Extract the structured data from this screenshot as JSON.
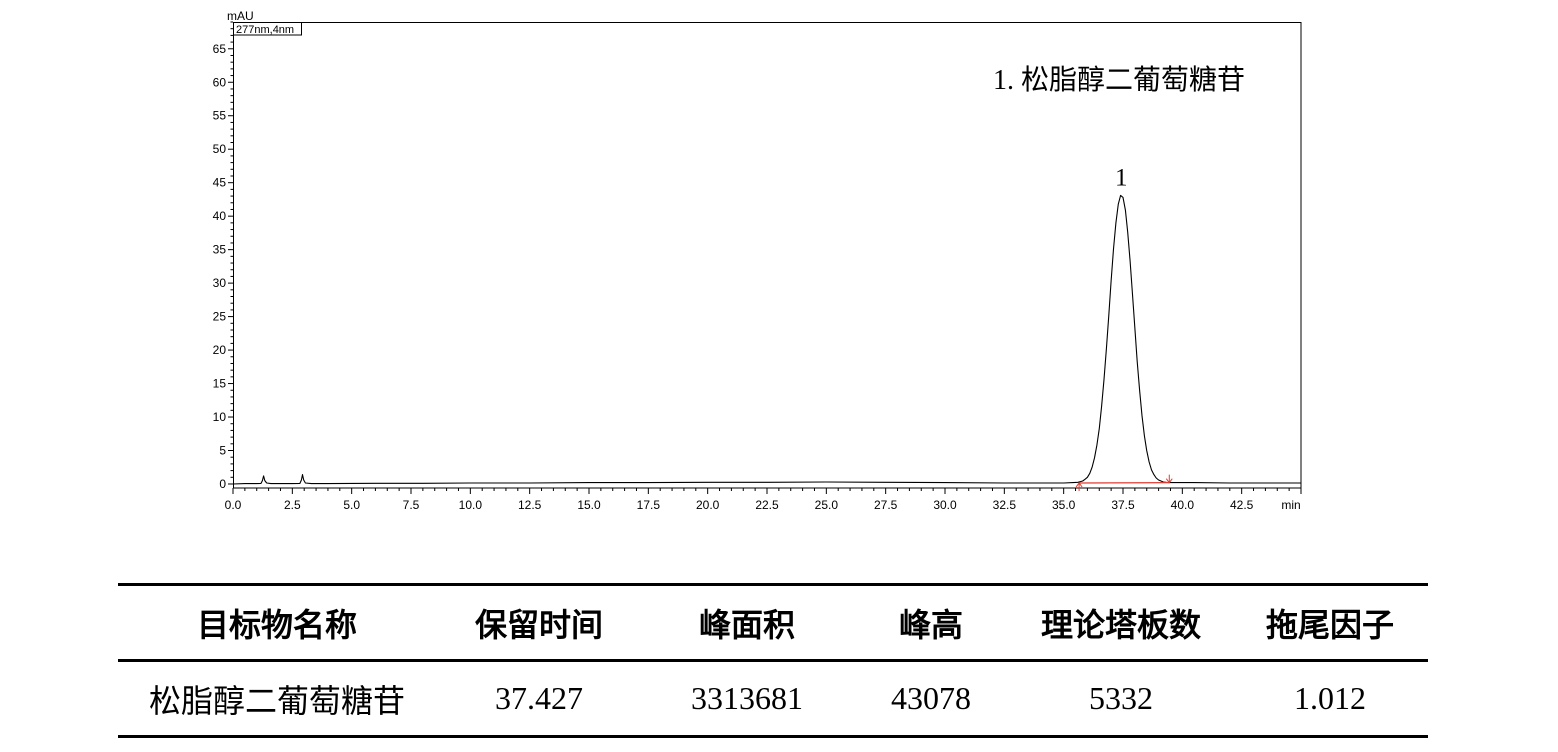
{
  "chart_data": {
    "type": "line",
    "xlabel": "min",
    "ylabel": "mAU",
    "channel_label": "277nm,4nm",
    "xlim": [
      0,
      45
    ],
    "ylim": [
      -0.6,
      69
    ],
    "grid": false,
    "x_ticks": [
      "0.0",
      "2.5",
      "5.0",
      "7.5",
      "10.0",
      "12.5",
      "15.0",
      "17.5",
      "20.0",
      "22.5",
      "25.0",
      "27.5",
      "30.0",
      "32.5",
      "35.0",
      "37.5",
      "40.0",
      "42.5"
    ],
    "y_ticks": [
      "0",
      "5",
      "10",
      "15",
      "20",
      "25",
      "30",
      "35",
      "40",
      "45",
      "50",
      "55",
      "60",
      "65"
    ],
    "legend": [
      "1. 松脂醇二葡萄糖苷"
    ],
    "legend_position": "top-right",
    "series": [
      {
        "x": [
          0.0,
          0.5,
          1.0,
          1.18,
          1.24,
          1.29,
          1.34,
          1.42,
          1.6,
          2.0,
          2.5,
          2.82,
          2.88,
          2.93,
          2.98,
          3.05,
          3.3,
          4.0,
          6.0,
          8.0,
          10.0,
          12.5,
          15.0,
          17.5,
          20.0,
          22.5,
          25.0,
          27.5,
          30.0,
          32.5,
          34.0,
          35.0,
          35.4,
          35.6,
          35.8,
          35.9,
          36.0,
          36.1,
          36.2,
          36.3,
          36.4,
          36.5,
          36.6,
          36.7,
          36.8,
          36.9,
          37.0,
          37.1,
          37.2,
          37.3,
          37.4,
          37.5,
          37.6,
          37.7,
          37.8,
          37.9,
          38.0,
          38.1,
          38.2,
          38.3,
          38.4,
          38.5,
          38.6,
          38.7,
          38.8,
          38.9,
          39.0,
          39.2,
          39.4,
          39.8,
          40.5,
          42.0,
          43.5,
          45.0
        ],
        "y": [
          0.0,
          0.05,
          0.05,
          0.08,
          0.5,
          1.2,
          0.5,
          0.15,
          0.05,
          0.05,
          0.05,
          0.08,
          0.6,
          1.4,
          0.6,
          0.15,
          0.05,
          0.05,
          0.1,
          0.1,
          0.15,
          0.15,
          0.2,
          0.2,
          0.25,
          0.25,
          0.3,
          0.25,
          0.2,
          0.15,
          0.15,
          0.15,
          0.2,
          0.25,
          0.45,
          0.7,
          1.0,
          1.6,
          2.5,
          3.9,
          5.8,
          8.3,
          11.6,
          15.6,
          20.2,
          25.2,
          30.3,
          35.1,
          39.0,
          41.8,
          43.1,
          42.8,
          40.9,
          37.6,
          33.3,
          28.3,
          23.2,
          18.3,
          14.0,
          10.2,
          7.2,
          5.0,
          3.3,
          2.1,
          1.4,
          0.9,
          0.6,
          0.3,
          0.2,
          0.2,
          0.2,
          0.15,
          0.15,
          0.15
        ]
      }
    ],
    "peaks": [
      {
        "label": "1",
        "x": 37.427,
        "y": 43.1
      }
    ],
    "integration_baseline": {
      "x": [
        35.65,
        39.45
      ],
      "y": [
        0.15,
        0.2
      ]
    },
    "colors": {
      "trace": "#000000",
      "integration_baseline": "#e03c31"
    }
  },
  "peak_table": {
    "headers": [
      "目标物名称",
      "保留时间",
      "峰面积",
      "峰高",
      "理论塔板数",
      "拖尾因子"
    ],
    "rows": [
      [
        "松脂醇二葡萄糖苷",
        "37.427",
        "3313681",
        "43078",
        "5332",
        "1.012"
      ]
    ]
  }
}
